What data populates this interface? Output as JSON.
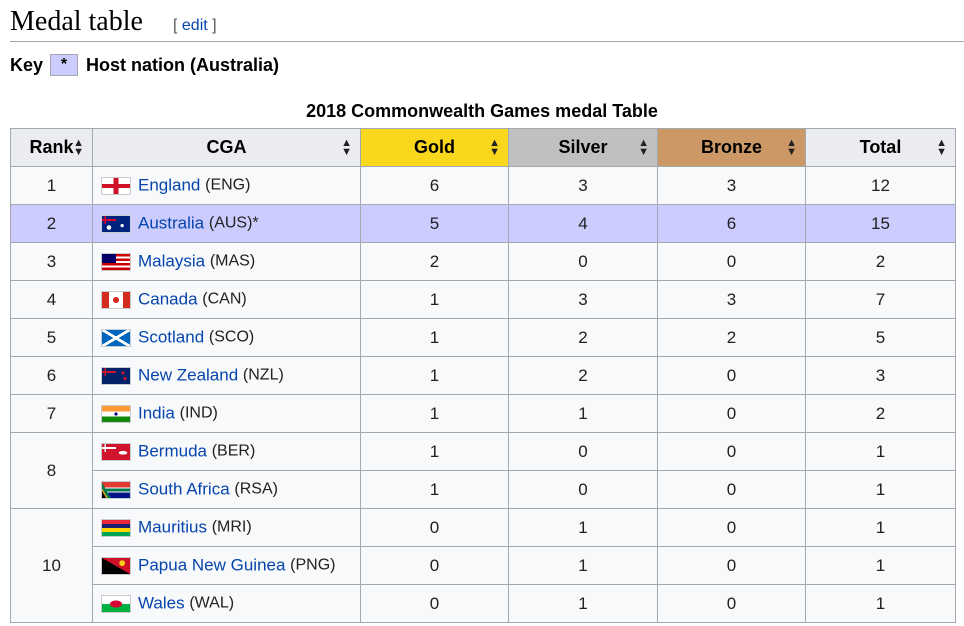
{
  "heading": {
    "title": "Medal table",
    "edit_open": "[ ",
    "edit_link": "edit",
    "edit_close": " ]"
  },
  "key": {
    "label": "Key",
    "symbol": "*",
    "description": "Host nation (Australia)"
  },
  "caption": "2018 Commonwealth Games medal Table",
  "columns": {
    "rank": "Rank",
    "cga": "CGA",
    "gold": "Gold",
    "silver": "Silver",
    "bronze": "Bronze",
    "total": "Total"
  },
  "colors": {
    "gold": "#f9d71c",
    "silver": "#c0c0c0",
    "bronze": "#cc9966",
    "host": "#ccccff",
    "link": "#0645ad"
  },
  "rows": [
    {
      "rank": "1",
      "name": "England",
      "code": "(ENG)",
      "flag": "flag-england-icon",
      "gold": "6",
      "silver": "3",
      "bronze": "3",
      "total": "12"
    },
    {
      "rank": "2",
      "name": "Australia",
      "code": "(AUS)*",
      "flag": "flag-australia-icon",
      "gold": "5",
      "silver": "4",
      "bronze": "6",
      "total": "15",
      "host": true
    },
    {
      "rank": "3",
      "name": "Malaysia",
      "code": "(MAS)",
      "flag": "flag-malaysia-icon",
      "gold": "2",
      "silver": "0",
      "bronze": "0",
      "total": "2"
    },
    {
      "rank": "4",
      "name": "Canada",
      "code": "(CAN)",
      "flag": "flag-canada-icon",
      "gold": "1",
      "silver": "3",
      "bronze": "3",
      "total": "7"
    },
    {
      "rank": "5",
      "name": "Scotland",
      "code": "(SCO)",
      "flag": "flag-scotland-icon",
      "gold": "1",
      "silver": "2",
      "bronze": "2",
      "total": "5"
    },
    {
      "rank": "6",
      "name": "New Zealand",
      "code": "(NZL)",
      "flag": "flag-new-zealand-icon",
      "gold": "1",
      "silver": "2",
      "bronze": "0",
      "total": "3"
    },
    {
      "rank": "7",
      "name": "India",
      "code": "(IND)",
      "flag": "flag-india-icon",
      "gold": "1",
      "silver": "1",
      "bronze": "0",
      "total": "2"
    },
    {
      "rank": "8",
      "name": "Bermuda",
      "code": "(BER)",
      "flag": "flag-bermuda-icon",
      "gold": "1",
      "silver": "0",
      "bronze": "0",
      "total": "1"
    },
    {
      "rank": "",
      "name": "South Africa",
      "code": "(RSA)",
      "flag": "flag-south-africa-icon",
      "gold": "1",
      "silver": "0",
      "bronze": "0",
      "total": "1"
    },
    {
      "rank": "10",
      "name": "Mauritius",
      "code": "(MRI)",
      "flag": "flag-mauritius-icon",
      "gold": "0",
      "silver": "1",
      "bronze": "0",
      "total": "1"
    },
    {
      "rank": "",
      "name": "Papua New Guinea",
      "code": "(PNG)",
      "flag": "flag-papua-new-guinea-icon",
      "gold": "0",
      "silver": "1",
      "bronze": "0",
      "total": "1"
    },
    {
      "rank": "",
      "name": "Wales",
      "code": "(WAL)",
      "flag": "flag-wales-icon",
      "gold": "0",
      "silver": "1",
      "bronze": "0",
      "total": "1"
    }
  ]
}
